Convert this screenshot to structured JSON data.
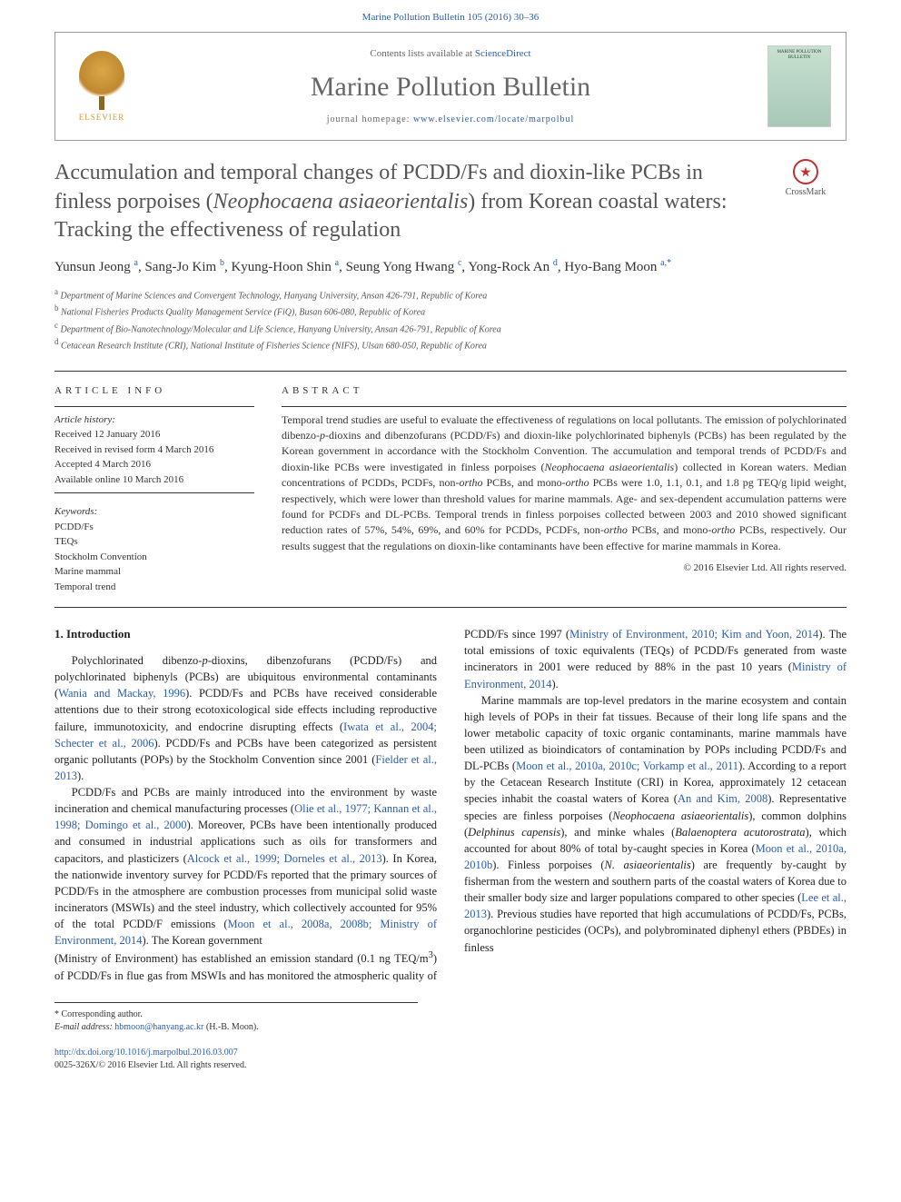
{
  "typography": {
    "body_font": "Georgia, 'Times New Roman', serif",
    "title_fontsize": 24,
    "journal_fontsize": 30,
    "body_fontsize": 12.5,
    "abstract_fontsize": 12,
    "affil_fontsize": 10
  },
  "colors": {
    "link": "#2a5db0",
    "title_gray": "#555555",
    "body_text": "#222222",
    "muted": "#666666",
    "border": "#333333",
    "elsevier_orange": "#d89830",
    "crossmark_red": "#c03030",
    "cover_bg_top": "#c8e0d0",
    "cover_bg_bottom": "#a8c8b8"
  },
  "header": {
    "top_link": "Marine Pollution Bulletin 105 (2016) 30–36",
    "contents_prefix": "Contents lists available at ",
    "contents_link": "ScienceDirect",
    "journal": "Marine Pollution Bulletin",
    "homepage_prefix": "journal homepage: ",
    "homepage_url": "www.elsevier.com/locate/marpolbul",
    "elsevier_label": "ELSEVIER",
    "cover_title": "MARINE POLLUTION BULLETIN"
  },
  "crossmark": {
    "label": "CrossMark"
  },
  "article": {
    "title_html": "Accumulation and temporal changes of PCDD/Fs and dioxin-like PCBs in finless porpoises (<em>Neophocaena asiaeorientalis</em>) from Korean coastal waters: Tracking the effectiveness of regulation",
    "authors_html": "Yunsun Jeong <sup>a</sup>, Sang-Jo Kim <sup>b</sup>, Kyung-Hoon Shin <sup>a</sup>, Seung Yong Hwang <sup>c</sup>, Yong-Rock An <sup>d</sup>, Hyo-Bang Moon <sup>a,*</sup>",
    "affiliations": [
      {
        "sup": "a",
        "text": "Department of Marine Sciences and Convergent Technology, Hanyang University, Ansan 426-791, Republic of Korea"
      },
      {
        "sup": "b",
        "text": "National Fisheries Products Quality Management Service (FiQ), Busan 606-080, Republic of Korea"
      },
      {
        "sup": "c",
        "text": "Department of Bio-Nanotechnology/Molecular and Life Science, Hanyang University, Ansan 426-791, Republic of Korea"
      },
      {
        "sup": "d",
        "text": "Cetacean Research Institute (CRI), National Institute of Fisheries Science (NIFS), Ulsan 680-050, Republic of Korea"
      }
    ]
  },
  "info": {
    "section_label": "article info",
    "history_label": "Article history:",
    "history": [
      "Received 12 January 2016",
      "Received in revised form 4 March 2016",
      "Accepted 4 March 2016",
      "Available online 10 March 2016"
    ],
    "keywords_label": "Keywords:",
    "keywords": [
      "PCDD/Fs",
      "TEQs",
      "Stockholm Convention",
      "Marine mammal",
      "Temporal trend"
    ]
  },
  "abstract": {
    "section_label": "abstract",
    "text_html": "Temporal trend studies are useful to evaluate the effectiveness of regulations on local pollutants. The emission of polychlorinated dibenzo-<em>p</em>-dioxins and dibenzofurans (PCDD/Fs) and dioxin-like polychlorinated biphenyls (PCBs) has been regulated by the Korean government in accordance with the Stockholm Convention. The accumulation and temporal trends of PCDD/Fs and dioxin-like PCBs were investigated in finless porpoises (<em>Neophocaena asiaeorientalis</em>) collected in Korean waters. Median concentrations of PCDDs, PCDFs, non-<em>ortho</em> PCBs, and mono-<em>ortho</em> PCBs were 1.0, 1.1, 0.1, and 1.8 pg TEQ/g lipid weight, respectively, which were lower than threshold values for marine mammals. Age- and sex-dependent accumulation patterns were found for PCDFs and DL-PCBs. Temporal trends in finless porpoises collected between 2003 and 2010 showed significant reduction rates of 57%, 54%, 69%, and 60% for PCDDs, PCDFs, non-<em>ortho</em> PCBs, and mono-<em>ortho</em> PCBs, respectively. Our results suggest that the regulations on dioxin-like contaminants have been effective for marine mammals in Korea.",
    "copyright": "© 2016 Elsevier Ltd. All rights reserved."
  },
  "body": {
    "heading": "1. Introduction",
    "p1_html": "Polychlorinated dibenzo-<em>p</em>-dioxins, dibenzofurans (PCDD/Fs) and polychlorinated biphenyls (PCBs) are ubiquitous environmental contaminants (<a class='ref'>Wania and Mackay, 1996</a>). PCDD/Fs and PCBs have received considerable attentions due to their strong ecotoxicological side effects including reproductive failure, immunotoxicity, and endocrine disrupting effects (<a class='ref'>Iwata et al., 2004; Schecter et al., 2006</a>). PCDD/Fs and PCBs have been categorized as persistent organic pollutants (POPs) by the Stockholm Convention since 2001 (<a class='ref'>Fielder et al., 2013</a>).",
    "p2_html": "PCDD/Fs and PCBs are mainly introduced into the environment by waste incineration and chemical manufacturing processes (<a class='ref'>Olie et al., 1977; Kannan et al., 1998; Domingo et al., 2000</a>). Moreover, PCBs have been intentionally produced and consumed in industrial applications such as oils for transformers and capacitors, and plasticizers (<a class='ref'>Alcock et al., 1999; Dorneles et al., 2013</a>). In Korea, the nationwide inventory survey for PCDD/Fs reported that the primary sources of PCDD/Fs in the atmosphere are combustion processes from municipal solid waste incinerators (MSWIs) and the steel industry, which collectively accounted for 95% of the total PCDD/F emissions (<a class='ref'>Moon et al., 2008a, 2008b; Ministry of Environment, 2014</a>). The Korean government",
    "p3_html": "(Ministry of Environment) has established an emission standard (0.1 ng TEQ/m<sup>3</sup>) of PCDD/Fs in flue gas from MSWIs and has monitored the atmospheric quality of PCDD/Fs since 1997 (<a class='ref'>Ministry of Environment, 2010; Kim and Yoon, 2014</a>). The total emissions of toxic equivalents (TEQs) of PCDD/Fs generated from waste incinerators in 2001 were reduced by 88% in the past 10 years (<a class='ref'>Ministry of Environment, 2014</a>).",
    "p4_html": "Marine mammals are top-level predators in the marine ecosystem and contain high levels of POPs in their fat tissues. Because of their long life spans and the lower metabolic capacity of toxic organic contaminants, marine mammals have been utilized as bioindicators of contamination by POPs including PCDD/Fs and DL-PCBs (<a class='ref'>Moon et al., 2010a, 2010c; Vorkamp et al., 2011</a>). According to a report by the Cetacean Research Institute (CRI) in Korea, approximately 12 cetacean species inhabit the coastal waters of Korea (<a class='ref'>An and Kim, 2008</a>). Representative species are finless porpoises (<em>Neophocaena asiaeorientalis</em>), common dolphins (<em>Delphinus capensis</em>), and minke whales (<em>Balaenoptera acutorostrata</em>), which accounted for about 80% of total by-caught species in Korea (<a class='ref'>Moon et al., 2010a, 2010b</a>). Finless porpoises (<em>N. asiaeorientalis</em>) are frequently by-caught by fisherman from the western and southern parts of the coastal waters of Korea due to their smaller body size and larger populations compared to other species (<a class='ref'>Lee et al., 2013</a>). Previous studies have reported that high accumulations of PCDD/Fs, PCBs, organochlorine pesticides (OCPs), and polybrominated diphenyl ethers (PBDEs) in finless"
  },
  "footnote": {
    "corr": "* Corresponding author.",
    "email_label": "E-mail address: ",
    "email": "hbmoon@hanyang.ac.kr",
    "email_suffix": " (H.-B. Moon)."
  },
  "footer": {
    "doi": "http://dx.doi.org/10.1016/j.marpolbul.2016.03.007",
    "issn": "0025-326X/© 2016 Elsevier Ltd. All rights reserved."
  }
}
